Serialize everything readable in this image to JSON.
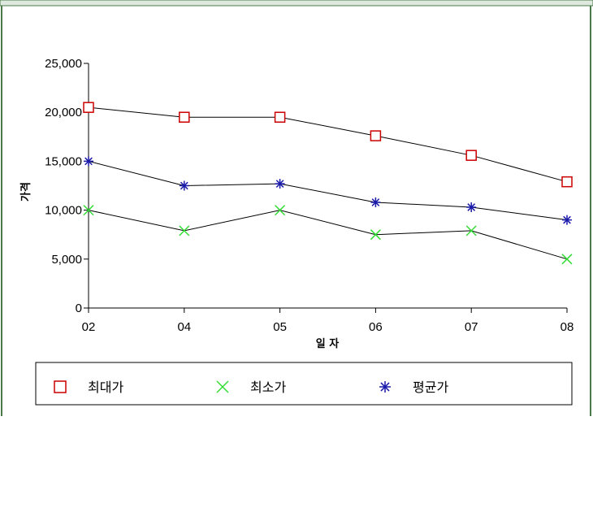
{
  "chart_data": {
    "type": "line",
    "categories": [
      "02",
      "04",
      "05",
      "06",
      "07",
      "08"
    ],
    "series": [
      {
        "name": "최대가",
        "color": "#cc0000",
        "marker": "square",
        "values": [
          20500,
          19500,
          19500,
          17600,
          15600,
          12900
        ]
      },
      {
        "name": "최소가",
        "color": "#33dd33",
        "marker": "x",
        "values": [
          10000,
          7900,
          10000,
          7500,
          7900,
          5000
        ]
      },
      {
        "name": "평균가",
        "color": "#1a1aaa",
        "marker": "asterisk",
        "values": [
          15000,
          12500,
          12700,
          10800,
          10300,
          9000
        ]
      }
    ],
    "ylabel": "가격",
    "xlabel": "일 자",
    "ylim": [
      0,
      25000
    ],
    "yticks": [
      "0",
      "5,000",
      "10,000",
      "15,000",
      "20,000",
      "25,000"
    ],
    "grid": false,
    "legend_position": "bottom"
  }
}
